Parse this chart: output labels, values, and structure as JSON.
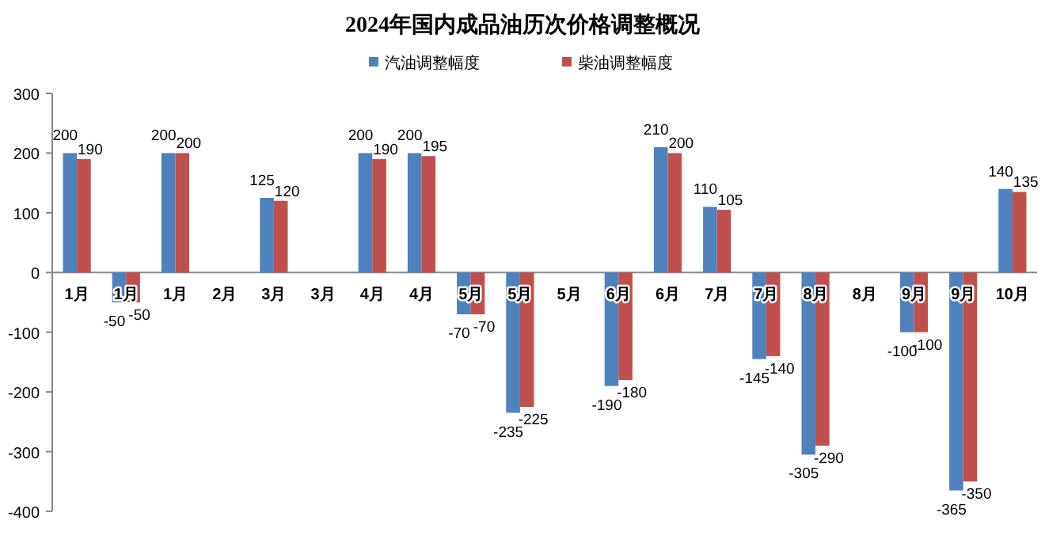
{
  "chart_data": {
    "type": "bar",
    "title": "2024年国内成品油历次价格调整概况",
    "categories": [
      "1月",
      "1月",
      "1月",
      "2月",
      "3月",
      "3月",
      "4月",
      "4月",
      "5月",
      "5月",
      "5月",
      "6月",
      "6月",
      "7月",
      "7月",
      "8月",
      "8月",
      "9月",
      "9月",
      "10月"
    ],
    "series": [
      {
        "name": "汽油调整幅度",
        "color": "#4f81bd",
        "values": [
          200,
          -50,
          200,
          null,
          125,
          null,
          200,
          200,
          -70,
          -235,
          null,
          -190,
          210,
          110,
          -145,
          -305,
          null,
          -100,
          -365,
          140
        ]
      },
      {
        "name": "柴油调整幅度",
        "color": "#c0504d",
        "values": [
          190,
          -50,
          200,
          null,
          120,
          null,
          190,
          195,
          -70,
          -225,
          null,
          -180,
          200,
          105,
          -140,
          -290,
          null,
          -100,
          -350,
          135
        ]
      }
    ],
    "ylim": [
      -400,
      300
    ],
    "yticks": [
      -400,
      -300,
      -200,
      -100,
      0,
      100,
      200,
      300
    ],
    "data_labels": true,
    "legend": "top",
    "grid": false
  }
}
